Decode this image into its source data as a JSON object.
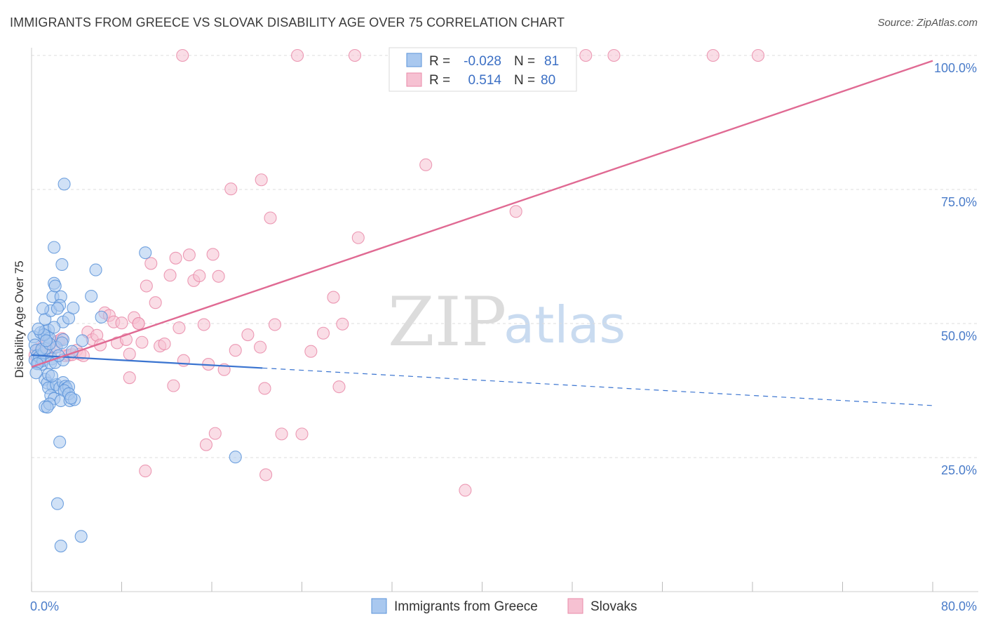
{
  "title": "IMMIGRANTS FROM GREECE VS SLOVAK DISABILITY AGE OVER 75 CORRELATION CHART",
  "source": "Source: ZipAtlas.com",
  "watermark": {
    "zip": "ZIP",
    "atlas": "atlas"
  },
  "colors": {
    "blue_fill": "#a9c8ef",
    "blue_stroke": "#5b93d9",
    "blue_line": "#3a74d0",
    "pink_fill": "#f6c1d2",
    "pink_stroke": "#e98aa8",
    "pink_line": "#e06a93",
    "tick_text": "#4a7cc9",
    "grid": "#dddddd"
  },
  "legend_top": {
    "rows": [
      {
        "r_label": "R =",
        "r_value": "-0.028",
        "n_label": "N =",
        "n_value": "81"
      },
      {
        "r_label": "R =",
        "r_value": "0.514",
        "n_label": "N =",
        "n_value": "80"
      }
    ]
  },
  "legend_bottom": [
    "Immigrants from Greece",
    "Slovaks"
  ],
  "chart_data": {
    "type": "scatter",
    "title": "IMMIGRANTS FROM GREECE VS SLOVAK DISABILITY AGE OVER 75 CORRELATION CHART",
    "xlabel": "",
    "ylabel": "Disability Age Over 75",
    "xlim": [
      0,
      80
    ],
    "ylim": [
      0,
      100
    ],
    "x_tick_labels": [
      "0.0%",
      "80.0%"
    ],
    "y_tick_labels": [
      "25.0%",
      "50.0%",
      "75.0%",
      "100.0%"
    ],
    "y_ticks": [
      25,
      50,
      75,
      100
    ],
    "grid": true,
    "legend_position": "bottom",
    "series": [
      {
        "name": "Immigrants from Greece",
        "r": -0.028,
        "n": 81,
        "trend": {
          "x": [
            0,
            20.5
          ],
          "y": [
            44.1,
            41.7
          ],
          "dashed_to": [
            80,
            34.7
          ]
        },
        "points": [
          [
            0.2,
            47.5
          ],
          [
            0.3,
            46.0
          ],
          [
            0.4,
            45.0
          ],
          [
            0.5,
            44.0
          ],
          [
            0.3,
            43.2
          ],
          [
            0.6,
            42.6
          ],
          [
            0.7,
            43.8
          ],
          [
            0.9,
            42.4
          ],
          [
            1.1,
            44.6
          ],
          [
            1.3,
            45.4
          ],
          [
            1.0,
            43.1
          ],
          [
            0.8,
            48.3
          ],
          [
            1.2,
            48.6
          ],
          [
            1.4,
            47.6
          ],
          [
            1.5,
            48.8
          ],
          [
            1.6,
            47.3
          ],
          [
            1.2,
            50.8
          ],
          [
            1.7,
            52.4
          ],
          [
            1.0,
            52.8
          ],
          [
            1.9,
            55.0
          ],
          [
            2.6,
            55.0
          ],
          [
            2.5,
            53.4
          ],
          [
            2.3,
            52.8
          ],
          [
            2.8,
            50.3
          ],
          [
            3.3,
            51.0
          ],
          [
            3.7,
            52.9
          ],
          [
            2.8,
            47.0
          ],
          [
            2.2,
            45.6
          ],
          [
            1.8,
            43.4
          ],
          [
            1.7,
            42.6
          ],
          [
            2.1,
            42.7
          ],
          [
            2.8,
            43.2
          ],
          [
            1.2,
            39.6
          ],
          [
            1.4,
            38.9
          ],
          [
            1.9,
            38.3
          ],
          [
            1.5,
            38.0
          ],
          [
            2.2,
            38.6
          ],
          [
            2.5,
            38.0
          ],
          [
            2.8,
            39.0
          ],
          [
            3.0,
            38.3
          ],
          [
            3.1,
            37.9
          ],
          [
            3.3,
            38.2
          ],
          [
            2.9,
            37.5
          ],
          [
            1.7,
            36.6
          ],
          [
            2.0,
            36.0
          ],
          [
            2.6,
            35.6
          ],
          [
            3.4,
            35.6
          ],
          [
            3.3,
            36.9
          ],
          [
            1.2,
            34.5
          ],
          [
            1.6,
            35.0
          ],
          [
            1.4,
            34.4
          ],
          [
            3.8,
            35.8
          ],
          [
            3.5,
            36.1
          ],
          [
            4.5,
            46.8
          ],
          [
            5.3,
            55.1
          ],
          [
            5.7,
            60.0
          ],
          [
            6.2,
            51.2
          ],
          [
            2.0,
            57.5
          ],
          [
            2.1,
            57.0
          ],
          [
            2.7,
            61.0
          ],
          [
            2.0,
            64.2
          ],
          [
            2.9,
            76.0
          ],
          [
            10.1,
            63.2
          ],
          [
            18.1,
            25.1
          ],
          [
            2.5,
            27.9
          ],
          [
            2.3,
            16.4
          ],
          [
            2.6,
            8.5
          ],
          [
            4.4,
            10.3
          ],
          [
            0.5,
            42.5
          ],
          [
            0.4,
            40.8
          ],
          [
            1.5,
            40.5
          ],
          [
            1.8,
            40.2
          ],
          [
            0.9,
            45.2
          ],
          [
            1.6,
            46.2
          ],
          [
            2.4,
            44.0
          ],
          [
            3.6,
            44.8
          ],
          [
            1.1,
            47.9
          ],
          [
            2.0,
            49.3
          ],
          [
            0.6,
            49.0
          ],
          [
            1.3,
            46.8
          ],
          [
            2.7,
            46.4
          ]
        ]
      },
      {
        "name": "Slovaks",
        "r": 0.514,
        "n": 80,
        "trend": {
          "x": [
            0,
            80
          ],
          "y": [
            41.9,
            99.0
          ]
        },
        "points": [
          [
            0.3,
            44.1
          ],
          [
            0.6,
            45.2
          ],
          [
            0.9,
            44.8
          ],
          [
            1.1,
            46.0
          ],
          [
            1.4,
            46.3
          ],
          [
            1.7,
            44.5
          ],
          [
            2.0,
            45.6
          ],
          [
            2.4,
            46.8
          ],
          [
            2.7,
            47.2
          ],
          [
            3.0,
            44.0
          ],
          [
            3.3,
            44.1
          ],
          [
            3.6,
            44.2
          ],
          [
            4.0,
            45.0
          ],
          [
            4.3,
            44.3
          ],
          [
            4.6,
            44.0
          ],
          [
            5.0,
            48.4
          ],
          [
            5.4,
            47.0
          ],
          [
            5.8,
            47.8
          ],
          [
            6.1,
            46.0
          ],
          [
            6.5,
            52.0
          ],
          [
            6.9,
            51.5
          ],
          [
            7.3,
            50.3
          ],
          [
            7.6,
            46.4
          ],
          [
            8.0,
            50.1
          ],
          [
            8.4,
            47.0
          ],
          [
            8.7,
            44.3
          ],
          [
            9.1,
            51.1
          ],
          [
            9.5,
            50.0
          ],
          [
            9.8,
            46.5
          ],
          [
            10.2,
            57.0
          ],
          [
            10.6,
            61.2
          ],
          [
            11.0,
            53.9
          ],
          [
            11.4,
            45.8
          ],
          [
            11.8,
            46.2
          ],
          [
            12.3,
            59.0
          ],
          [
            12.8,
            62.2
          ],
          [
            13.1,
            49.2
          ],
          [
            13.5,
            43.1
          ],
          [
            14.0,
            62.8
          ],
          [
            14.4,
            58.0
          ],
          [
            14.9,
            58.9
          ],
          [
            15.3,
            49.8
          ],
          [
            15.7,
            42.4
          ],
          [
            16.1,
            62.9
          ],
          [
            16.6,
            58.8
          ],
          [
            17.1,
            41.4
          ],
          [
            18.1,
            45.0
          ],
          [
            19.2,
            47.9
          ],
          [
            20.3,
            45.6
          ],
          [
            20.7,
            37.9
          ],
          [
            21.2,
            69.7
          ],
          [
            21.6,
            49.8
          ],
          [
            22.2,
            29.4
          ],
          [
            24.0,
            29.4
          ],
          [
            24.8,
            44.8
          ],
          [
            25.9,
            48.2
          ],
          [
            26.8,
            54.9
          ],
          [
            27.3,
            38.2
          ],
          [
            27.6,
            49.9
          ],
          [
            29.0,
            66.0
          ],
          [
            35.0,
            79.6
          ],
          [
            43.0,
            70.9
          ],
          [
            38.5,
            18.9
          ],
          [
            10.1,
            22.5
          ],
          [
            15.5,
            27.4
          ],
          [
            16.3,
            29.5
          ],
          [
            20.8,
            21.8
          ],
          [
            8.7,
            39.9
          ],
          [
            12.6,
            38.4
          ],
          [
            17.7,
            75.1
          ],
          [
            20.4,
            76.8
          ],
          [
            13.4,
            100.0
          ],
          [
            23.6,
            100.0
          ],
          [
            28.7,
            100.0
          ],
          [
            40.6,
            100.0
          ],
          [
            49.2,
            100.0
          ],
          [
            51.7,
            100.0
          ],
          [
            60.5,
            100.0
          ],
          [
            64.5,
            100.0
          ],
          [
            9.5,
            50.0
          ]
        ]
      }
    ]
  }
}
